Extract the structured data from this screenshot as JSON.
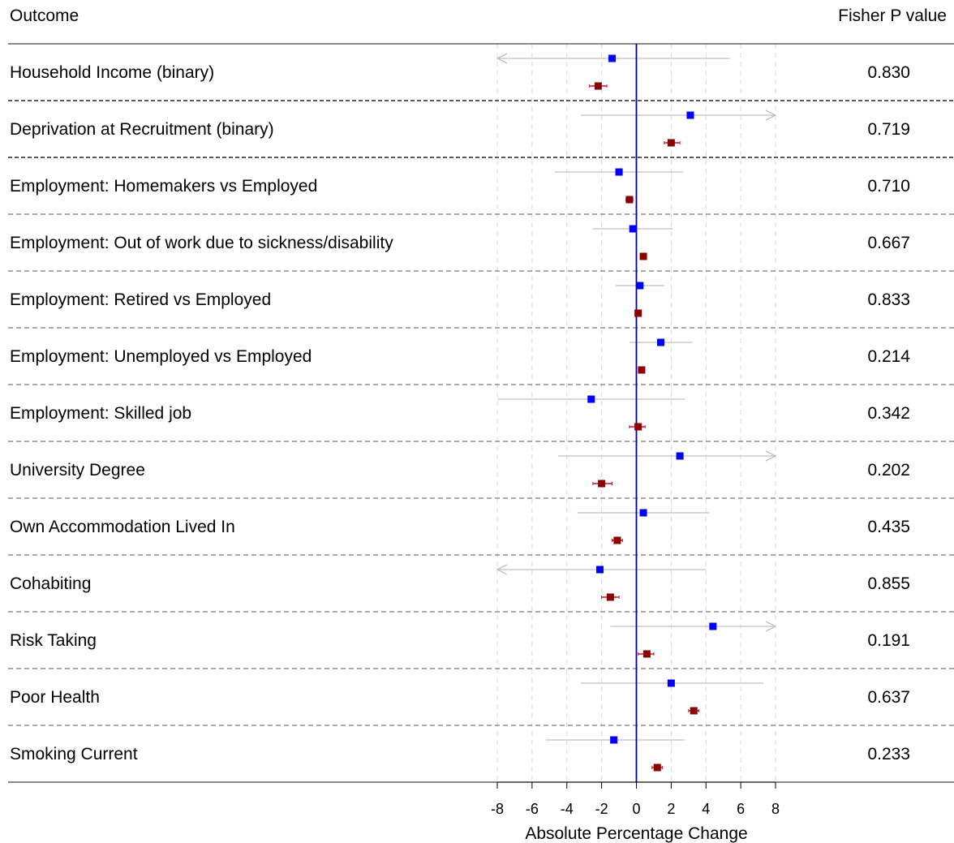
{
  "header": {
    "outcome_label": "Outcome",
    "pvalue_label": "Fisher P value"
  },
  "colors": {
    "series1": "#0000ff",
    "series2": "#8b0000",
    "ci_series1": "#c0c0c0",
    "ci_series2": "#c8102e",
    "zero_line": "#00008b",
    "grid": "#d9d9d9"
  },
  "chart_data": {
    "type": "forest",
    "xlabel": "Absolute Percentage Change",
    "xlim": [
      -8,
      8
    ],
    "xticks": [
      -8,
      -6,
      -4,
      -2,
      0,
      2,
      4,
      6,
      8
    ],
    "grid": true,
    "reference_line": 0,
    "series": [
      {
        "name": "",
        "color": "#0000ff",
        "estimates": [
          -1.4,
          3.1,
          -1.0,
          -0.2,
          0.2,
          1.4,
          -2.6,
          2.5,
          0.4,
          -2.1,
          4.4,
          2.0,
          -1.3
        ],
        "lower": [
          -8.0,
          -3.2,
          -4.7,
          -2.5,
          -1.2,
          -0.4,
          -8.0,
          -4.5,
          -3.4,
          -8.0,
          -1.5,
          -3.2,
          -5.2
        ],
        "upper": [
          5.4,
          8.0,
          2.7,
          2.1,
          1.6,
          3.2,
          2.8,
          8.0,
          4.2,
          4.0,
          8.0,
          7.3,
          2.8
        ],
        "lower_truncated": [
          true,
          false,
          false,
          false,
          false,
          false,
          false,
          false,
          false,
          true,
          false,
          false,
          false
        ],
        "upper_truncated": [
          false,
          true,
          false,
          false,
          false,
          false,
          false,
          true,
          false,
          false,
          true,
          false,
          false
        ]
      },
      {
        "name": "",
        "color": "#8b0000",
        "estimates": [
          -2.2,
          2.0,
          -0.4,
          0.4,
          0.1,
          0.3,
          0.1,
          -2.0,
          -1.1,
          -1.5,
          0.6,
          3.3,
          1.2
        ],
        "lower": [
          -2.7,
          1.6,
          -0.6,
          0.3,
          0.0,
          0.2,
          -0.4,
          -2.5,
          -1.4,
          -2.0,
          0.1,
          3.0,
          0.9
        ],
        "upper": [
          -1.7,
          2.5,
          -0.2,
          0.5,
          0.2,
          0.4,
          0.5,
          -1.4,
          -0.8,
          -1.0,
          1.0,
          3.6,
          1.5
        ]
      }
    ],
    "rows": [
      {
        "outcome": "Household Income (binary)",
        "p_value": "0.830"
      },
      {
        "outcome": "Deprivation at Recruitment (binary)",
        "p_value": "0.719"
      },
      {
        "outcome": "Employment: Homemakers vs Employed",
        "p_value": "0.710"
      },
      {
        "outcome": "Employment: Out of work due to sickness/disability",
        "p_value": "0.667"
      },
      {
        "outcome": "Employment: Retired vs Employed",
        "p_value": "0.833"
      },
      {
        "outcome": "Employment: Unemployed vs Employed",
        "p_value": "0.214"
      },
      {
        "outcome": "Employment: Skilled job",
        "p_value": "0.342"
      },
      {
        "outcome": "University Degree",
        "p_value": "0.202"
      },
      {
        "outcome": "Own Accommodation Lived In",
        "p_value": "0.435"
      },
      {
        "outcome": "Cohabiting",
        "p_value": "0.855"
      },
      {
        "outcome": "Risk Taking",
        "p_value": "0.191"
      },
      {
        "outcome": "Poor Health",
        "p_value": "0.637"
      },
      {
        "outcome": "Smoking Current",
        "p_value": "0.233"
      }
    ]
  }
}
